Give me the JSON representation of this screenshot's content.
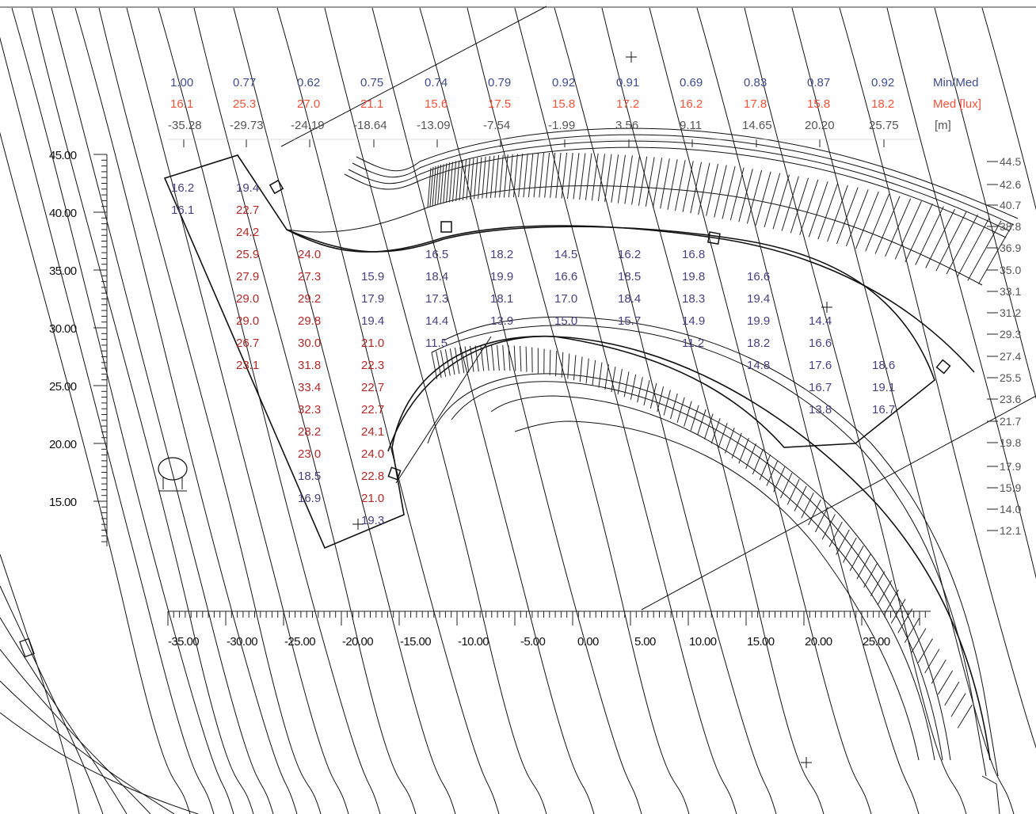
{
  "header": {
    "ratios": [
      "1.00",
      "0.77",
      "0.62",
      "0.75",
      "0.74",
      "0.79",
      "0.92",
      "0.91",
      "0.69",
      "0.83",
      "0.87",
      "0.92"
    ],
    "ratio_label": "Min/Med",
    "medians": [
      "16.1",
      "25.3",
      "27.0",
      "21.1",
      "15.6",
      "17.5",
      "15.8",
      "17.2",
      "16.2",
      "17.8",
      "15.8",
      "18.2"
    ],
    "median_label": "Med [lux]",
    "positions": [
      "-35.28",
      "-29.73",
      "-24.19",
      "-18.64",
      "-13.09",
      "-7.54",
      "-1.99",
      "3.56",
      "9.11",
      "14.65",
      "20.20",
      "25.75"
    ],
    "position_label": "[m]"
  },
  "left_axis": [
    "45.00",
    "40.00",
    "35.00",
    "30.00",
    "25.00",
    "20.00",
    "15.00"
  ],
  "right_axis": [
    "44.5",
    "42.6",
    "40.7",
    "38.8",
    "36.9",
    "35.0",
    "33.1",
    "31.2",
    "29.3",
    "27.4",
    "25.5",
    "23.6",
    "21.7",
    "19.8",
    "17.9",
    "15.9",
    "14.0",
    "12.1"
  ],
  "bottom_axis": [
    "-35.00",
    "-30.00",
    "-25.00",
    "-20.00",
    "-15.00",
    "-10.00",
    "-5.00",
    "0.00",
    "5.00",
    "10.00",
    "15.00",
    "20.00",
    "25.00"
  ],
  "grid_values": {
    "col1": [
      "16.2",
      "16.1"
    ],
    "col2": [
      "19.4",
      "22.7",
      "24.2",
      "25.9",
      "27.9",
      "29.0",
      "29.0",
      "26.7",
      "23.1"
    ],
    "col3": [
      "24.0",
      "27.3",
      "29.2",
      "29.8",
      "30.0",
      "31.8",
      "33.4",
      "32.3",
      "28.2",
      "23.0",
      "18.5",
      "16.9"
    ],
    "col4": [
      "15.9",
      "17.9",
      "19.4",
      "21.0",
      "22.3",
      "22.7",
      "22.7",
      "24.1",
      "24.0",
      "22.8",
      "21.0",
      "19.3"
    ],
    "col5": [
      "16.5",
      "18.4",
      "17.3",
      "14.4",
      "11.5"
    ],
    "col6": [
      "18.2",
      "19.9",
      "18.1",
      "13.9"
    ],
    "col7": [
      "14.5",
      "16.6",
      "17.0",
      "15.0"
    ],
    "col8": [
      "16.2",
      "18.5",
      "18.4",
      "15.7"
    ],
    "col9": [
      "16.8",
      "19.8",
      "18.3",
      "14.9",
      "11.2"
    ],
    "col10": [
      "16.6",
      "19.4",
      "19.9",
      "18.2",
      "14.8"
    ],
    "col11": [
      "14.4",
      "16.6",
      "17.6",
      "16.7",
      "13.8"
    ],
    "col12": [
      "18.6",
      "19.1",
      "16.7"
    ]
  },
  "colors": {
    "ratio_text": "#3e4d8e",
    "median_text": "#f0523a",
    "value_low": "#4a3f7e",
    "value_high": "#b02a27",
    "lines": "#111111"
  }
}
